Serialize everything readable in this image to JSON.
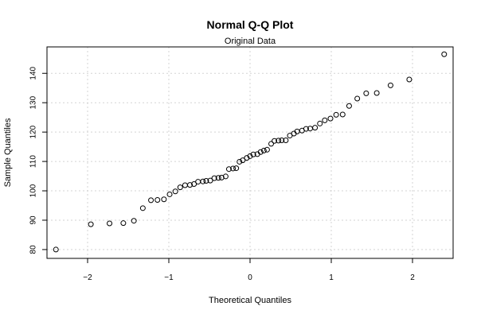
{
  "chart_data": {
    "type": "scatter",
    "title": "Normal Q-Q Plot",
    "subtitle": "Original Data",
    "xlabel": "Theoretical Quantiles",
    "ylabel": "Sample Quantiles",
    "xlim": [
      -2.5,
      2.5
    ],
    "ylim": [
      77,
      149
    ],
    "x_ticks": [
      -2,
      -1,
      0,
      1,
      2
    ],
    "x_tick_labels": [
      "−2",
      "−1",
      "0",
      "1",
      "2"
    ],
    "y_ticks": [
      80,
      90,
      100,
      110,
      120,
      130,
      140
    ],
    "y_tick_labels": [
      "80",
      "90",
      "100",
      "110",
      "120",
      "130",
      "140"
    ],
    "grid": true,
    "marker": "open-circle",
    "series": [
      {
        "points": [
          [
            -2.39,
            80.0
          ],
          [
            -1.96,
            88.6
          ],
          [
            -1.73,
            88.9
          ],
          [
            -1.56,
            89.0
          ],
          [
            -1.43,
            89.8
          ],
          [
            -1.32,
            94.1
          ],
          [
            -1.22,
            96.8
          ],
          [
            -1.14,
            96.9
          ],
          [
            -1.06,
            97.1
          ],
          [
            -0.99,
            98.8
          ],
          [
            -0.92,
            99.8
          ],
          [
            -0.86,
            101.2
          ],
          [
            -0.8,
            101.9
          ],
          [
            -0.74,
            102.0
          ],
          [
            -0.69,
            102.3
          ],
          [
            -0.64,
            103.1
          ],
          [
            -0.58,
            103.2
          ],
          [
            -0.54,
            103.4
          ],
          [
            -0.49,
            103.5
          ],
          [
            -0.44,
            104.3
          ],
          [
            -0.39,
            104.4
          ],
          [
            -0.35,
            104.5
          ],
          [
            -0.3,
            104.9
          ],
          [
            -0.26,
            107.4
          ],
          [
            -0.21,
            107.6
          ],
          [
            -0.17,
            107.7
          ],
          [
            -0.13,
            109.9
          ],
          [
            -0.09,
            110.4
          ],
          [
            -0.04,
            111.2
          ],
          [
            0.0,
            111.8
          ],
          [
            0.04,
            112.4
          ],
          [
            0.09,
            112.5
          ],
          [
            0.13,
            113.2
          ],
          [
            0.17,
            113.7
          ],
          [
            0.21,
            114.0
          ],
          [
            0.26,
            116.0
          ],
          [
            0.3,
            117.0
          ],
          [
            0.35,
            117.1
          ],
          [
            0.39,
            117.2
          ],
          [
            0.44,
            117.2
          ],
          [
            0.49,
            118.8
          ],
          [
            0.54,
            119.5
          ],
          [
            0.58,
            120.2
          ],
          [
            0.64,
            120.5
          ],
          [
            0.69,
            121.1
          ],
          [
            0.74,
            121.2
          ],
          [
            0.8,
            121.5
          ],
          [
            0.86,
            122.9
          ],
          [
            0.92,
            124.0
          ],
          [
            0.99,
            124.6
          ],
          [
            1.06,
            125.9
          ],
          [
            1.14,
            126.0
          ],
          [
            1.22,
            128.9
          ],
          [
            1.32,
            131.4
          ],
          [
            1.43,
            133.2
          ],
          [
            1.56,
            133.3
          ],
          [
            1.73,
            135.9
          ],
          [
            1.96,
            137.9
          ],
          [
            2.39,
            146.5
          ]
        ]
      }
    ],
    "colors": {
      "points": "#000000",
      "axes": "#000000",
      "grid": "#d3d3d3",
      "background": "#ffffff"
    }
  }
}
